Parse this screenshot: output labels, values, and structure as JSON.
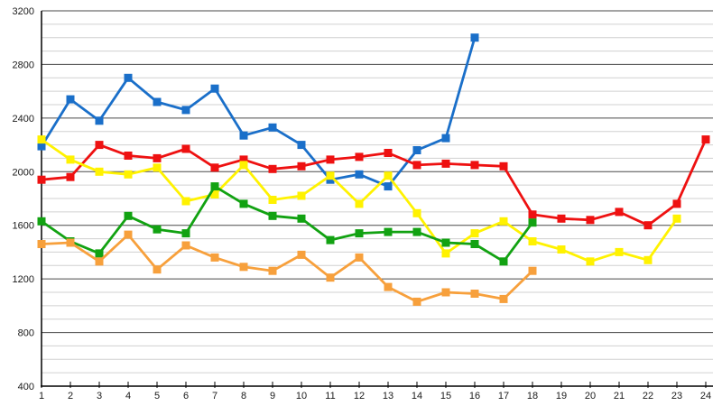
{
  "chart_data": {
    "type": "line",
    "title": "",
    "xlabel": "",
    "ylabel": "",
    "legend": "none",
    "grid": "horizontal-only",
    "ylim": [
      400,
      3200
    ],
    "y_major_step": 400,
    "y_minor_step": 100,
    "y_tick_labels": [
      "400",
      "800",
      "1200",
      "1600",
      "2000",
      "2400",
      "2800",
      "3200"
    ],
    "x": [
      1,
      2,
      3,
      4,
      5,
      6,
      7,
      8,
      9,
      10,
      11,
      12,
      13,
      14,
      15,
      16,
      17,
      18,
      19,
      20,
      21,
      22,
      23,
      24
    ],
    "x_tick_labels": [
      "1",
      "2",
      "3",
      "4",
      "5",
      "6",
      "7",
      "8",
      "9",
      "10",
      "11",
      "12",
      "13",
      "14",
      "15",
      "16",
      "17",
      "18",
      "19",
      "20",
      "21",
      "22",
      "23",
      "24"
    ],
    "series": [
      {
        "name": "series-blue",
        "color": "#1A6FC9",
        "values": [
          2190,
          2540,
          2380,
          2700,
          2520,
          2460,
          2620,
          2270,
          2330,
          2200,
          1940,
          1980,
          1890,
          2160,
          2250,
          3000,
          null,
          null,
          null,
          null,
          null,
          null,
          null,
          null
        ]
      },
      {
        "name": "series-red",
        "color": "#EE1111",
        "values": [
          1940,
          1960,
          2200,
          2120,
          2100,
          2170,
          2030,
          2090,
          2020,
          2040,
          2090,
          2110,
          2140,
          2050,
          2060,
          2050,
          2040,
          1680,
          1650,
          1640,
          1700,
          1600,
          1760,
          2240
        ]
      },
      {
        "name": "series-yellow",
        "color": "#FFF200",
        "values": [
          2240,
          2090,
          2000,
          1980,
          2030,
          1780,
          1830,
          2050,
          1790,
          1820,
          1970,
          1760,
          1970,
          1690,
          1390,
          1540,
          1630,
          1480,
          1420,
          1330,
          1400,
          1340,
          1650,
          null
        ]
      },
      {
        "name": "series-green",
        "color": "#12A212",
        "values": [
          1630,
          1480,
          1390,
          1670,
          1570,
          1540,
          1890,
          1760,
          1670,
          1650,
          1490,
          1540,
          1550,
          1550,
          1470,
          1460,
          1330,
          1620,
          null,
          null,
          null,
          null,
          null,
          null
        ]
      },
      {
        "name": "series-orange",
        "color": "#F7A03C",
        "values": [
          1460,
          1470,
          1330,
          1530,
          1270,
          1450,
          1360,
          1290,
          1260,
          1380,
          1210,
          1360,
          1140,
          1030,
          1100,
          1090,
          1050,
          1260,
          null,
          null,
          null,
          null,
          null,
          null
        ]
      }
    ],
    "style_colors": {
      "background": "#FFFFFF",
      "major_gridline": "#4A4A4A",
      "minor_gridline": "#D0D0D0",
      "axis_line": "#000000",
      "tick_label": "#1A1A1A"
    }
  }
}
